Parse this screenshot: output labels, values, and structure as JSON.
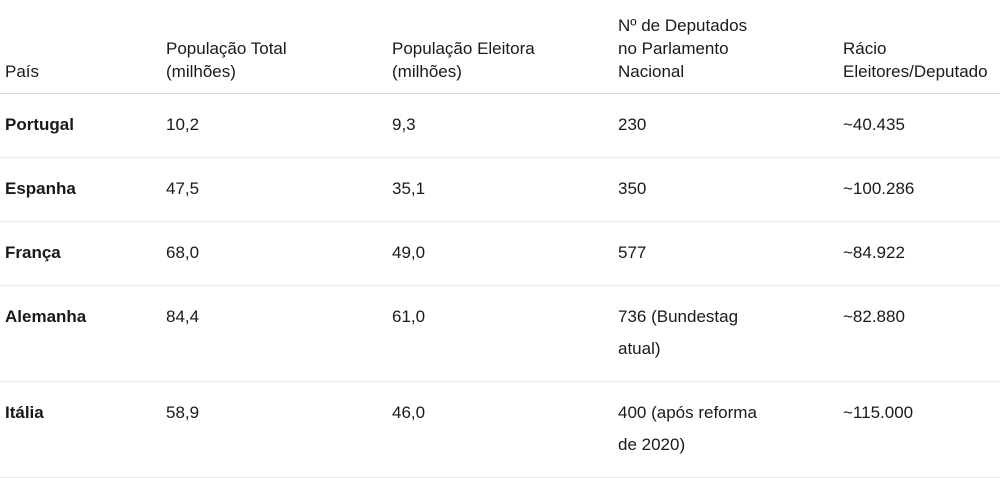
{
  "table": {
    "header": [
      "País",
      "População Total (milhões)",
      "População Eleitora (milhões)",
      "Nº de Deputados no Parlamento Nacional",
      "Rácio Eleitores/Deputado"
    ],
    "rows": [
      [
        "Portugal",
        "10,2",
        "9,3",
        "230",
        "~40.435"
      ],
      [
        "Espanha",
        "47,5",
        "35,1",
        "350",
        "~100.286"
      ],
      [
        "França",
        "68,0",
        "49,0",
        "577",
        "~84.922"
      ],
      [
        "Alemanha",
        "84,4",
        "61,0",
        "736 (Bundestag atual)",
        "~82.880"
      ],
      [
        "Itália",
        "58,9",
        "46,0",
        "400 (após reforma de 2020)",
        "~115.000"
      ]
    ]
  }
}
